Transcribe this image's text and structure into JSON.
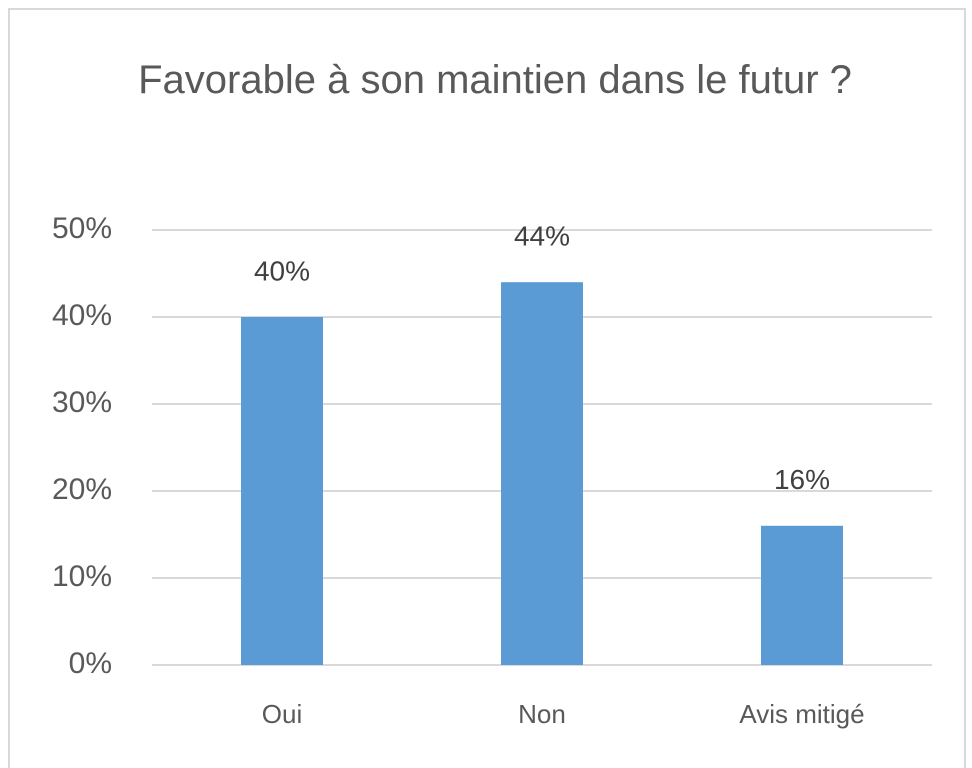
{
  "chart_data": {
    "type": "bar",
    "title": "Favorable à son maintien dans le futur ?",
    "categories": [
      "Oui",
      "Non",
      "Avis mitigé"
    ],
    "values": [
      40,
      44,
      16
    ],
    "value_labels": [
      "40%",
      "44%",
      "16%"
    ],
    "color": "#5b9bd5",
    "ylim": [
      0,
      50
    ],
    "yticks": [
      {
        "value": 0,
        "label": "0%"
      },
      {
        "value": 10,
        "label": "10%"
      },
      {
        "value": 20,
        "label": "20%"
      },
      {
        "value": 30,
        "label": "30%"
      },
      {
        "value": 40,
        "label": "40%"
      },
      {
        "value": 50,
        "label": "50%"
      }
    ],
    "grid": true
  }
}
